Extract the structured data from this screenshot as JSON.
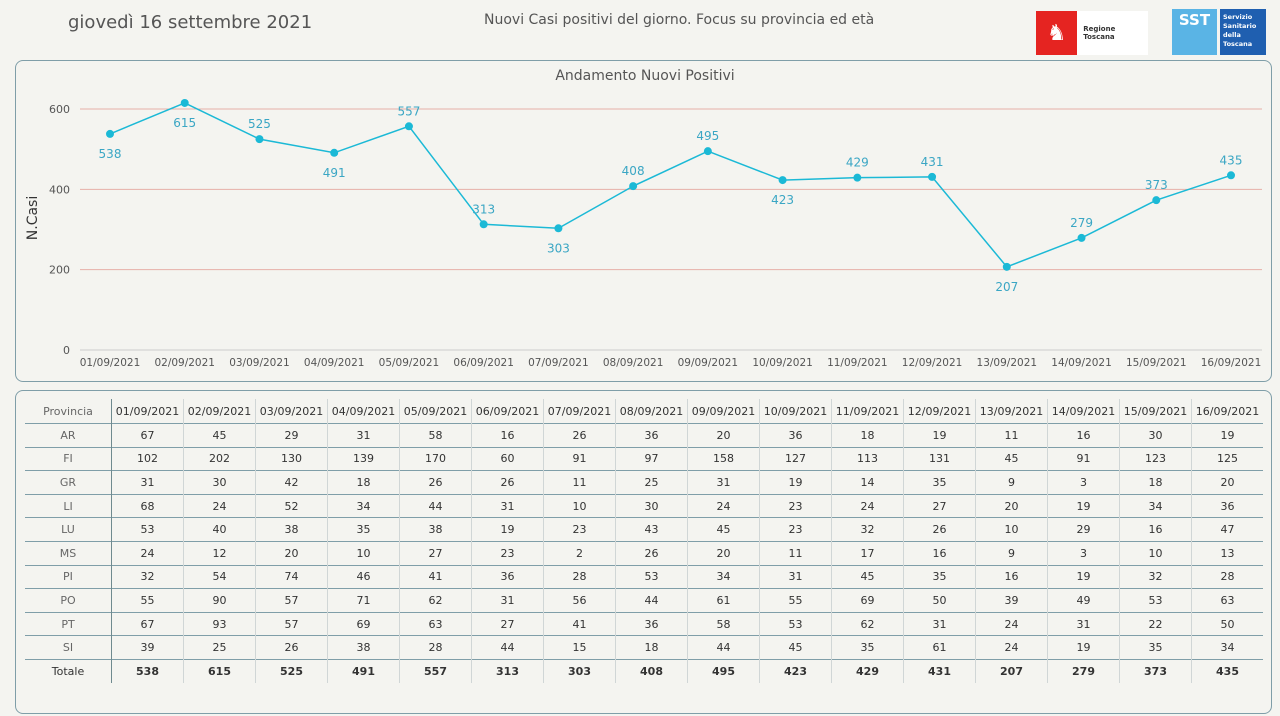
{
  "header": {
    "date": "giovedì 16 settembre 2021",
    "title": "Nuovi Casi positivi del giorno. Focus su provincia ed età",
    "logo_rt": "Regione Toscana",
    "logo_sst_short": "SST",
    "logo_sst_full": "Servizio Sanitario della Toscana"
  },
  "chart_data": {
    "type": "line",
    "title": "Andamento Nuovi Positivi",
    "xlabel": "",
    "ylabel": "N.Casi",
    "ylim": [
      0,
      600
    ],
    "yticks": [
      0,
      200,
      400,
      600
    ],
    "grid": "horizontal",
    "color": "#1bb9d6",
    "categories": [
      "01/09/2021",
      "02/09/2021",
      "03/09/2021",
      "04/09/2021",
      "05/09/2021",
      "06/09/2021",
      "07/09/2021",
      "08/09/2021",
      "09/09/2021",
      "10/09/2021",
      "11/09/2021",
      "12/09/2021",
      "13/09/2021",
      "14/09/2021",
      "15/09/2021",
      "16/09/2021"
    ],
    "values": [
      538,
      615,
      525,
      491,
      557,
      313,
      303,
      408,
      495,
      423,
      429,
      431,
      207,
      279,
      373,
      435
    ]
  },
  "table": {
    "header": "Provincia",
    "rows": [
      {
        "name": "AR",
        "values": [
          67,
          45,
          29,
          31,
          58,
          16,
          26,
          36,
          20,
          36,
          18,
          19,
          11,
          16,
          30,
          19
        ]
      },
      {
        "name": "FI",
        "values": [
          102,
          202,
          130,
          139,
          170,
          60,
          91,
          97,
          158,
          127,
          113,
          131,
          45,
          91,
          123,
          125
        ]
      },
      {
        "name": "GR",
        "values": [
          31,
          30,
          42,
          18,
          26,
          26,
          11,
          25,
          31,
          19,
          14,
          35,
          9,
          3,
          18,
          20
        ]
      },
      {
        "name": "LI",
        "values": [
          68,
          24,
          52,
          34,
          44,
          31,
          10,
          30,
          24,
          23,
          24,
          27,
          20,
          19,
          34,
          36
        ]
      },
      {
        "name": "LU",
        "values": [
          53,
          40,
          38,
          35,
          38,
          19,
          23,
          43,
          45,
          23,
          32,
          26,
          10,
          29,
          16,
          47
        ]
      },
      {
        "name": "MS",
        "values": [
          24,
          12,
          20,
          10,
          27,
          23,
          2,
          26,
          20,
          11,
          17,
          16,
          9,
          3,
          10,
          13
        ]
      },
      {
        "name": "PI",
        "values": [
          32,
          54,
          74,
          46,
          41,
          36,
          28,
          53,
          34,
          31,
          45,
          35,
          16,
          19,
          32,
          28
        ]
      },
      {
        "name": "PO",
        "values": [
          55,
          90,
          57,
          71,
          62,
          31,
          56,
          44,
          61,
          55,
          69,
          50,
          39,
          49,
          53,
          63
        ]
      },
      {
        "name": "PT",
        "values": [
          67,
          93,
          57,
          69,
          63,
          27,
          41,
          36,
          58,
          53,
          62,
          31,
          24,
          31,
          22,
          50
        ]
      },
      {
        "name": "SI",
        "values": [
          39,
          25,
          26,
          38,
          28,
          44,
          15,
          18,
          44,
          45,
          35,
          61,
          24,
          19,
          35,
          34
        ]
      }
    ],
    "total": {
      "name": "Totale",
      "values": [
        538,
        615,
        525,
        491,
        557,
        313,
        303,
        408,
        495,
        423,
        429,
        431,
        207,
        279,
        373,
        435
      ]
    }
  }
}
